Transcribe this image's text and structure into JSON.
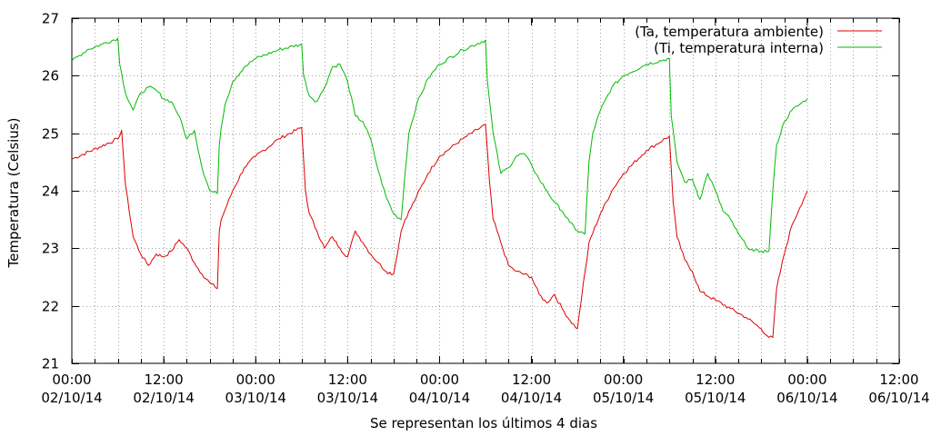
{
  "chart_data": {
    "type": "line",
    "title": "",
    "xlabel": "Se representan los últimos 4 dias",
    "ylabel": "Temperatura (Celsius)",
    "ylim": [
      21,
      27
    ],
    "y_ticks": [
      "21",
      "22",
      "23",
      "24",
      "25",
      "26",
      "27"
    ],
    "x_ticks": [
      {
        "time": "00:00",
        "date": "02/10/14"
      },
      {
        "time": "12:00",
        "date": "02/10/14"
      },
      {
        "time": "00:00",
        "date": "03/10/14"
      },
      {
        "time": "12:00",
        "date": "03/10/14"
      },
      {
        "time": "00:00",
        "date": "04/10/14"
      },
      {
        "time": "12:00",
        "date": "04/10/14"
      },
      {
        "time": "00:00",
        "date": "05/10/14"
      },
      {
        "time": "12:00",
        "date": "05/10/14"
      },
      {
        "time": "00:00",
        "date": "06/10/14"
      },
      {
        "time": "12:00",
        "date": "06/10/14"
      }
    ],
    "grid": true,
    "legend_position": "top-right",
    "series": [
      {
        "name": "(Ta, temperatura ambiente)",
        "color": "#dd0000",
        "x": [
          "02/10/14 00:00",
          "02/10/14 06:00",
          "02/10/14 06:30",
          "02/10/14 07:00",
          "02/10/14 08:00",
          "02/10/14 09:00",
          "02/10/14 10:00",
          "02/10/14 11:00",
          "02/10/14 12:00",
          "02/10/14 13:00",
          "02/10/14 14:00",
          "02/10/14 15:00",
          "02/10/14 16:00",
          "02/10/14 17:00",
          "02/10/14 18:00",
          "02/10/14 19:00",
          "02/10/14 19:15",
          "02/10/14 19:30",
          "02/10/14 21:00",
          "02/10/14 22:30",
          "03/10/14 00:00",
          "03/10/14 03:00",
          "03/10/14 06:00",
          "03/10/14 06:30",
          "03/10/14 07:00",
          "03/10/14 08:00",
          "03/10/14 09:00",
          "03/10/14 10:00",
          "03/10/14 11:00",
          "03/10/14 12:00",
          "03/10/14 13:00",
          "03/10/14 14:00",
          "03/10/14 15:00",
          "03/10/14 16:00",
          "03/10/14 17:00",
          "03/10/14 18:00",
          "03/10/14 19:00",
          "03/10/14 19:30",
          "03/10/14 21:00",
          "03/10/14 22:30",
          "04/10/14 00:00",
          "04/10/14 03:00",
          "04/10/14 06:00",
          "04/10/14 06:30",
          "04/10/14 07:00",
          "04/10/14 08:00",
          "04/10/14 09:00",
          "04/10/14 10:00",
          "04/10/14 12:00",
          "04/10/14 13:00",
          "04/10/14 14:00",
          "04/10/14 15:00",
          "04/10/14 16:00",
          "04/10/14 17:00",
          "04/10/14 18:00",
          "04/10/14 19:00",
          "04/10/14 19:15",
          "04/10/14 19:30",
          "04/10/14 21:00",
          "04/10/14 22:30",
          "05/10/14 00:00",
          "05/10/14 03:00",
          "05/10/14 06:00",
          "05/10/14 06:30",
          "05/10/14 07:00",
          "05/10/14 08:00",
          "05/10/14 09:00",
          "05/10/14 10:00",
          "05/10/14 12:00",
          "05/10/14 14:00",
          "05/10/14 16:00",
          "05/10/14 18:00",
          "05/10/14 19:00",
          "05/10/14 19:30",
          "05/10/14 20:00",
          "05/10/14 21:00",
          "05/10/14 22:00",
          "05/10/14 23:00",
          "06/10/14 00:00"
        ],
        "values": [
          24.55,
          24.9,
          25.05,
          24.1,
          23.2,
          22.9,
          22.7,
          22.9,
          22.85,
          22.95,
          23.15,
          23.0,
          22.75,
          22.55,
          22.4,
          22.3,
          23.3,
          23.5,
          24.0,
          24.4,
          24.6,
          24.9,
          25.1,
          24.0,
          23.6,
          23.3,
          23.0,
          23.2,
          23.0,
          22.85,
          23.3,
          23.1,
          22.9,
          22.75,
          22.6,
          22.55,
          23.3,
          23.5,
          23.9,
          24.3,
          24.6,
          24.9,
          25.15,
          24.2,
          23.5,
          23.1,
          22.7,
          22.6,
          22.5,
          22.2,
          22.05,
          22.2,
          21.95,
          21.75,
          21.6,
          22.6,
          22.8,
          23.1,
          23.6,
          24.0,
          24.3,
          24.7,
          24.95,
          23.8,
          23.2,
          22.8,
          22.6,
          22.25,
          22.1,
          21.95,
          21.8,
          21.6,
          21.45,
          21.45,
          22.3,
          22.9,
          23.4,
          23.7,
          24.0
        ]
      },
      {
        "name": "(Ti, temperatura interna)",
        "color": "#00bb00",
        "x": [
          "02/10/14 00:00",
          "02/10/14 02:00",
          "02/10/14 04:00",
          "02/10/14 06:00",
          "02/10/14 06:15",
          "02/10/14 07:00",
          "02/10/14 08:00",
          "02/10/14 09:00",
          "02/10/14 10:00",
          "02/10/14 11:00",
          "02/10/14 12:00",
          "02/10/14 13:00",
          "02/10/14 14:00",
          "02/10/14 15:00",
          "02/10/14 16:00",
          "02/10/14 17:00",
          "02/10/14 18:00",
          "02/10/14 19:00",
          "02/10/14 19:15",
          "02/10/14 19:30",
          "02/10/14 20:00",
          "02/10/14 21:00",
          "02/10/14 22:30",
          "03/10/14 00:00",
          "03/10/14 03:00",
          "03/10/14 06:00",
          "03/10/14 06:15",
          "03/10/14 07:00",
          "03/10/14 08:00",
          "03/10/14 09:00",
          "03/10/14 10:00",
          "03/10/14 11:00",
          "03/10/14 12:00",
          "03/10/14 13:00",
          "03/10/14 14:00",
          "03/10/14 15:00",
          "03/10/14 16:00",
          "03/10/14 17:00",
          "03/10/14 18:00",
          "03/10/14 19:00",
          "03/10/14 19:30",
          "03/10/14 20:00",
          "03/10/14 21:00",
          "03/10/14 22:30",
          "04/10/14 00:00",
          "04/10/14 03:00",
          "04/10/14 06:00",
          "04/10/14 06:15",
          "04/10/14 07:00",
          "04/10/14 08:00",
          "04/10/14 09:00",
          "04/10/14 10:00",
          "04/10/14 11:00",
          "04/10/14 12:00",
          "04/10/14 13:00",
          "04/10/14 14:00",
          "04/10/14 15:00",
          "04/10/14 16:00",
          "04/10/14 17:00",
          "04/10/14 18:00",
          "04/10/14 19:00",
          "04/10/14 19:30",
          "04/10/14 20:00",
          "04/10/14 21:00",
          "04/10/14 22:30",
          "05/10/14 00:00",
          "05/10/14 03:00",
          "05/10/14 06:00",
          "05/10/14 06:15",
          "05/10/14 07:00",
          "05/10/14 08:00",
          "05/10/14 09:00",
          "05/10/14 10:00",
          "05/10/14 11:00",
          "05/10/14 12:00",
          "05/10/14 13:00",
          "05/10/14 14:00",
          "05/10/14 15:00",
          "05/10/14 16:00",
          "05/10/14 17:00",
          "05/10/14 18:00",
          "05/10/14 19:00",
          "05/10/14 19:30",
          "05/10/14 20:00",
          "05/10/14 21:00",
          "05/10/14 22:00",
          "05/10/14 23:00",
          "06/10/14 00:00"
        ],
        "values": [
          26.25,
          26.45,
          26.55,
          26.65,
          26.2,
          25.7,
          25.4,
          25.7,
          25.8,
          25.75,
          25.6,
          25.55,
          25.3,
          24.9,
          25.05,
          24.4,
          24.0,
          23.95,
          24.8,
          25.1,
          25.5,
          25.9,
          26.15,
          26.3,
          26.45,
          26.55,
          26.0,
          25.65,
          25.55,
          25.8,
          26.15,
          26.2,
          25.9,
          25.3,
          25.2,
          24.9,
          24.35,
          23.9,
          23.6,
          23.5,
          24.3,
          25.0,
          25.5,
          25.95,
          26.2,
          26.45,
          26.62,
          25.9,
          25.0,
          24.3,
          24.4,
          24.6,
          24.65,
          24.45,
          24.2,
          24.0,
          23.8,
          23.65,
          23.45,
          23.3,
          23.25,
          24.5,
          25.0,
          25.4,
          25.8,
          26.0,
          26.2,
          26.3,
          25.3,
          24.5,
          24.15,
          24.2,
          23.85,
          24.3,
          24.0,
          23.65,
          23.5,
          23.25,
          23.05,
          22.95,
          22.95,
          22.95,
          24.0,
          24.8,
          25.2,
          25.4,
          25.5,
          25.6
        ]
      }
    ]
  }
}
